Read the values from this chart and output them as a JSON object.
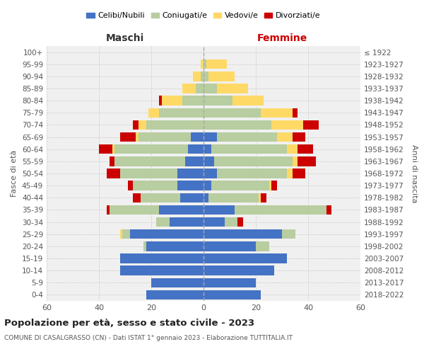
{
  "age_groups": [
    "0-4",
    "5-9",
    "10-14",
    "15-19",
    "20-24",
    "25-29",
    "30-34",
    "35-39",
    "40-44",
    "45-49",
    "50-54",
    "55-59",
    "60-64",
    "65-69",
    "70-74",
    "75-79",
    "80-84",
    "85-89",
    "90-94",
    "95-99",
    "100+"
  ],
  "birth_years": [
    "2018-2022",
    "2013-2017",
    "2008-2012",
    "2003-2007",
    "1998-2002",
    "1993-1997",
    "1988-1992",
    "1983-1987",
    "1978-1982",
    "1973-1977",
    "1968-1972",
    "1963-1967",
    "1958-1962",
    "1953-1957",
    "1948-1952",
    "1943-1947",
    "1938-1942",
    "1933-1937",
    "1928-1932",
    "1923-1927",
    "≤ 1922"
  ],
  "male": {
    "celibi": [
      22,
      20,
      32,
      32,
      22,
      28,
      13,
      17,
      9,
      10,
      10,
      7,
      6,
      5,
      0,
      0,
      0,
      0,
      0,
      0,
      0
    ],
    "coniugati": [
      0,
      0,
      0,
      0,
      1,
      3,
      5,
      19,
      15,
      17,
      22,
      27,
      28,
      20,
      22,
      17,
      8,
      3,
      1,
      0,
      0
    ],
    "vedovi": [
      0,
      0,
      0,
      0,
      0,
      1,
      0,
      0,
      0,
      0,
      0,
      0,
      1,
      1,
      3,
      4,
      8,
      5,
      3,
      1,
      0
    ],
    "divorziati": [
      0,
      0,
      0,
      0,
      0,
      0,
      0,
      1,
      3,
      2,
      5,
      2,
      5,
      6,
      2,
      0,
      1,
      0,
      0,
      0,
      0
    ]
  },
  "female": {
    "nubili": [
      22,
      20,
      27,
      32,
      20,
      30,
      8,
      12,
      2,
      3,
      5,
      4,
      3,
      5,
      0,
      0,
      0,
      0,
      0,
      0,
      0
    ],
    "coniugate": [
      0,
      0,
      0,
      0,
      5,
      5,
      5,
      35,
      19,
      22,
      27,
      30,
      29,
      23,
      26,
      22,
      11,
      5,
      2,
      1,
      0
    ],
    "vedove": [
      0,
      0,
      0,
      0,
      0,
      0,
      0,
      0,
      1,
      1,
      2,
      2,
      4,
      6,
      12,
      12,
      12,
      12,
      10,
      8,
      0
    ],
    "divorziate": [
      0,
      0,
      0,
      0,
      0,
      0,
      2,
      2,
      2,
      2,
      5,
      7,
      6,
      5,
      6,
      2,
      0,
      0,
      0,
      0,
      0
    ]
  },
  "colors": {
    "celibi": "#4472c4",
    "coniugati": "#b8cda0",
    "vedovi": "#ffd966",
    "divorziati": "#cc0000"
  },
  "xlim": 60,
  "title": "Popolazione per età, sesso e stato civile - 2023",
  "subtitle": "COMUNE DI CASALGRASSO (CN) - Dati ISTAT 1° gennaio 2023 - Elaborazione TUTTITALIA.IT",
  "xlabel_left": "Maschi",
  "xlabel_right": "Femmine",
  "ylabel_left": "Fasce di età",
  "ylabel_right": "Anni di nascita",
  "legend_labels": [
    "Celibi/Nubili",
    "Coniugati/e",
    "Vedovi/e",
    "Divorziati/e"
  ],
  "background_color": "#ffffff",
  "ax_bg_color": "#f0f0f0"
}
